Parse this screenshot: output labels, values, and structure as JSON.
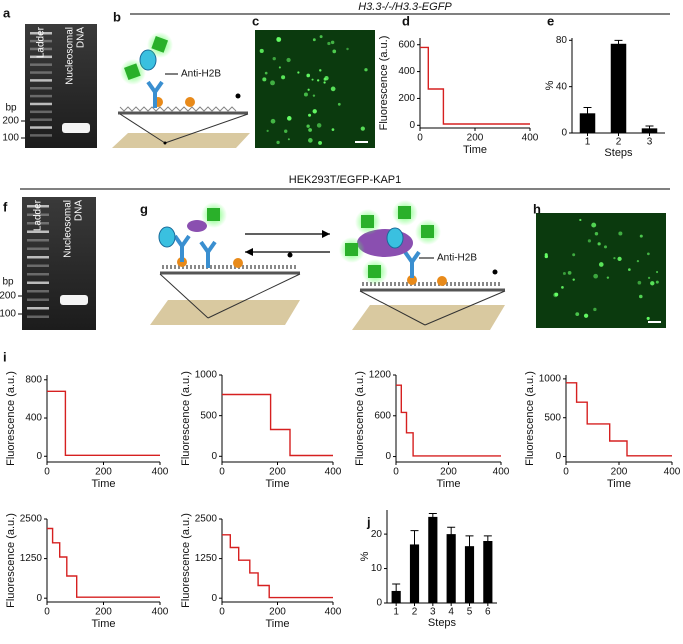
{
  "headers": [
    "H3.3-/-/H3.3-EGFP",
    "HEK293T/EGFP-KAP1"
  ],
  "panel_letters": [
    "a",
    "b",
    "c",
    "d",
    "e",
    "f",
    "g",
    "h",
    "i",
    "j"
  ],
  "gels": [
    {
      "lane": "Ladder",
      "sample": [
        "Nucleosomal",
        "DNA"
      ],
      "unit": "bp",
      "ticks": [
        200,
        100
      ]
    },
    {
      "lane": "Ladder",
      "sample": [
        "Nucleosomal",
        "DNA"
      ],
      "unit": "bp",
      "ticks": [
        200,
        100
      ]
    }
  ],
  "diagram_labels": [
    "Anti-H2B",
    "Anti-H2B"
  ],
  "chart_data": [
    {
      "type": "line",
      "xlabel": "Time",
      "ylabel": "Fluorescence (a.u.)",
      "color": "#d62020",
      "x": [
        0,
        30,
        30,
        85,
        85,
        400
      ],
      "values": [
        580,
        580,
        270,
        270,
        10,
        10
      ],
      "xlim": [
        0,
        400
      ],
      "xticks": [
        0,
        200,
        400
      ],
      "ylim": [
        -20,
        650
      ],
      "yticks": [
        0,
        200,
        400,
        600
      ]
    },
    {
      "type": "bar",
      "xlabel": "Steps",
      "ylabel": "%",
      "color": "#000000",
      "categories": [
        "1",
        "2",
        "3"
      ],
      "values": [
        17,
        77,
        4
      ],
      "errors": [
        5,
        3,
        2
      ],
      "ylim": [
        0,
        82
      ],
      "yticks": [
        0,
        40,
        80
      ]
    },
    {
      "type": "line",
      "xlabel": "Time",
      "ylabel": "Fluorescence (a.u.)",
      "color": "#d62020",
      "x": [
        0,
        65,
        65,
        400
      ],
      "values": [
        680,
        680,
        10,
        10
      ],
      "xlim": [
        0,
        400
      ],
      "xticks": [
        0,
        200,
        400
      ],
      "ylim": [
        -60,
        850
      ],
      "yticks": [
        0,
        400,
        800
      ]
    },
    {
      "type": "line",
      "xlabel": "Time",
      "ylabel": "Fluorescence (a.u.)",
      "color": "#d62020",
      "x": [
        0,
        175,
        175,
        245,
        245,
        400
      ],
      "values": [
        760,
        760,
        330,
        330,
        10,
        10
      ],
      "xlim": [
        0,
        400
      ],
      "xticks": [
        0,
        200,
        400
      ],
      "ylim": [
        -70,
        1000
      ],
      "yticks": [
        0,
        500,
        1000
      ]
    },
    {
      "type": "line",
      "xlabel": "Time",
      "ylabel": "Fluorescence (a.u.)",
      "color": "#d62020",
      "x": [
        0,
        20,
        20,
        40,
        40,
        65,
        65,
        400
      ],
      "values": [
        1050,
        1050,
        650,
        650,
        350,
        350,
        10,
        10
      ],
      "xlim": [
        0,
        400
      ],
      "xticks": [
        0,
        200,
        400
      ],
      "ylim": [
        -80,
        1200
      ],
      "yticks": [
        0,
        600,
        1200
      ]
    },
    {
      "type": "line",
      "xlabel": "Time",
      "ylabel": "Fluorescence (a.u.)",
      "color": "#d62020",
      "x": [
        0,
        40,
        40,
        80,
        80,
        165,
        165,
        230,
        230,
        400
      ],
      "values": [
        950,
        950,
        700,
        700,
        420,
        420,
        200,
        200,
        10,
        10
      ],
      "xlim": [
        0,
        400
      ],
      "xticks": [
        0,
        200,
        400
      ],
      "ylim": [
        -70,
        1050
      ],
      "yticks": [
        0,
        500,
        1000
      ]
    },
    {
      "type": "line",
      "xlabel": "Time",
      "ylabel": "Fluorescence (a.u.)",
      "color": "#d62020",
      "x": [
        0,
        20,
        20,
        45,
        45,
        70,
        70,
        105,
        105,
        400
      ],
      "values": [
        2200,
        2200,
        1750,
        1750,
        1300,
        1300,
        700,
        700,
        30,
        30
      ],
      "xlim": [
        0,
        400
      ],
      "xticks": [
        0,
        200,
        400
      ],
      "ylim": [
        -120,
        2500
      ],
      "yticks": [
        0,
        1250,
        2500
      ]
    },
    {
      "type": "line",
      "xlabel": "Time",
      "ylabel": "Fluorescence (a.u.)",
      "color": "#d62020",
      "x": [
        0,
        30,
        30,
        60,
        60,
        100,
        100,
        130,
        130,
        170,
        170,
        400
      ],
      "values": [
        2000,
        2000,
        1600,
        1600,
        1200,
        1200,
        800,
        800,
        400,
        400,
        20,
        20
      ],
      "xlim": [
        0,
        400
      ],
      "xticks": [
        0,
        200,
        400
      ],
      "ylim": [
        -120,
        2500
      ],
      "yticks": [
        0,
        1250,
        2500
      ]
    },
    {
      "type": "bar",
      "xlabel": "Steps",
      "ylabel": "%",
      "color": "#000000",
      "categories": [
        "1",
        "2",
        "3",
        "4",
        "5",
        "6"
      ],
      "values": [
        3.5,
        17,
        25,
        20,
        16.5,
        18
      ],
      "errors": [
        2,
        4,
        1,
        2,
        3,
        1.5
      ],
      "ylim": [
        0,
        27
      ],
      "yticks": [
        0,
        10,
        20
      ]
    }
  ]
}
